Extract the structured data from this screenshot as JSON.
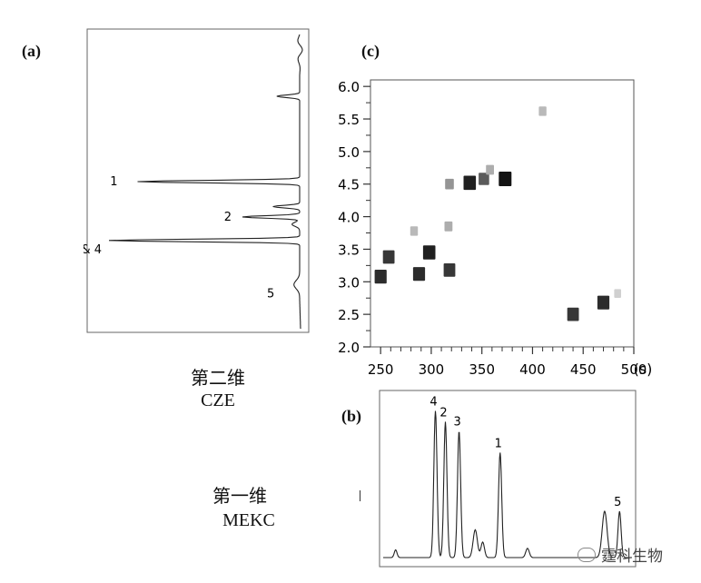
{
  "labels": {
    "a": "(a)",
    "b": "(b)",
    "c": "(c)",
    "second_dim_cn": "第二维",
    "second_dim_en": "CZE",
    "first_dim_cn": "第一维",
    "first_dim_en": "MEKC",
    "watermark": "霆科生物"
  },
  "chart_data": [
    {
      "panel": "a",
      "type": "line",
      "orientation": "vertical",
      "peak_labels": [
        "1",
        "2",
        "3 & 4",
        "5"
      ],
      "peaks": [
        {
          "label": "1",
          "position": 0.5,
          "height": 0.85
        },
        {
          "label": "2",
          "position": 0.62,
          "height": 0.3
        },
        {
          "label": "3 & 4",
          "position": 0.7,
          "height": 1.0
        },
        {
          "label": "5",
          "position": 0.85,
          "height": 0.03
        }
      ]
    },
    {
      "panel": "c",
      "type": "heatmap",
      "xunit": "(s)",
      "xlim": [
        240,
        500
      ],
      "ylim": [
        2.0,
        6.1
      ],
      "xticks": [
        250,
        300,
        350,
        400,
        450,
        500
      ],
      "xtick_labels": [
        "250",
        "300",
        "350",
        "400",
        "450",
        "500"
      ],
      "yticks": [
        2.0,
        2.5,
        3.0,
        3.5,
        4.0,
        4.5,
        5.0,
        5.5,
        6.0
      ],
      "ytick_labels": [
        "2.0",
        "2.5",
        "3.0",
        "3.5",
        "4.0",
        "4.5",
        "5.0",
        "5.5",
        "6.0"
      ],
      "spots": [
        {
          "x": 250,
          "y": 3.08,
          "i": 0.9
        },
        {
          "x": 258,
          "y": 3.38,
          "i": 0.85
        },
        {
          "x": 288,
          "y": 3.12,
          "i": 0.9
        },
        {
          "x": 298,
          "y": 3.45,
          "i": 0.95
        },
        {
          "x": 318,
          "y": 3.18,
          "i": 0.85
        },
        {
          "x": 317,
          "y": 3.85,
          "i": 0.35
        },
        {
          "x": 283,
          "y": 3.78,
          "i": 0.3
        },
        {
          "x": 318,
          "y": 4.5,
          "i": 0.45
        },
        {
          "x": 338,
          "y": 4.52,
          "i": 0.95
        },
        {
          "x": 352,
          "y": 4.58,
          "i": 0.7
        },
        {
          "x": 358,
          "y": 4.72,
          "i": 0.35
        },
        {
          "x": 373,
          "y": 4.58,
          "i": 1.0
        },
        {
          "x": 410,
          "y": 5.62,
          "i": 0.3
        },
        {
          "x": 440,
          "y": 2.5,
          "i": 0.85
        },
        {
          "x": 470,
          "y": 2.68,
          "i": 0.9
        },
        {
          "x": 484,
          "y": 2.82,
          "i": 0.2
        }
      ]
    },
    {
      "panel": "b",
      "type": "line",
      "peak_labels": [
        "4",
        "2",
        "3",
        "1",
        "5"
      ],
      "peaks": [
        {
          "label": "4",
          "position": 0.21,
          "height": 0.95
        },
        {
          "label": "2",
          "position": 0.25,
          "height": 0.88
        },
        {
          "label": "3",
          "position": 0.305,
          "height": 0.82
        },
        {
          "label": "1",
          "position": 0.47,
          "height": 0.68
        },
        {
          "label": "5",
          "position": 0.95,
          "height": 0.3
        }
      ]
    }
  ]
}
